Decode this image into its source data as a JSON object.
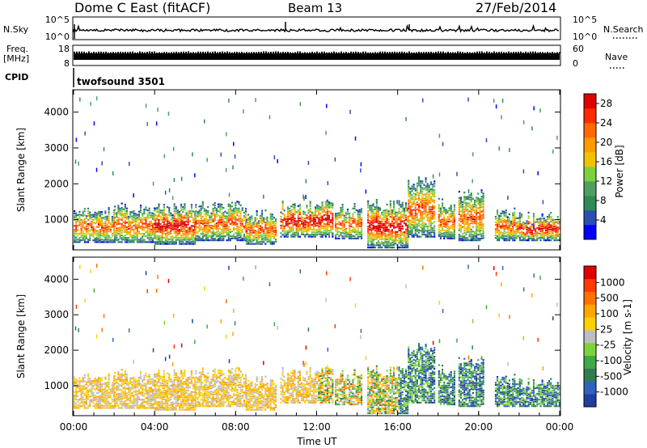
{
  "header": {
    "station": "Dome C East (fitACF)",
    "beam": "Beam 13",
    "date": "27/Feb/2014"
  },
  "panels": {
    "nsky": {
      "label": "N.Sky",
      "left_ticks": [
        "10^5",
        "10^0"
      ],
      "right_ticks": [
        "10^5",
        "10^0"
      ],
      "right_label": "N.Search"
    },
    "freq": {
      "label_line1": "Freq.",
      "label_line2": "[MHz]",
      "left_ticks": [
        "18",
        "8"
      ],
      "right_ticks": [
        "60",
        "0"
      ],
      "right_label": "Nave"
    },
    "cpid": {
      "label": "CPID",
      "program": "twofsound 3501"
    }
  },
  "colors": {
    "power": [
      "#0000ff",
      "#2a4fb0",
      "#2e8b57",
      "#4fa060",
      "#7cd23c",
      "#f2c200",
      "#ff9a00",
      "#ff6a00",
      "#ff2a00",
      "#e00000"
    ],
    "velocity": [
      "#1f3f9e",
      "#2f62c0",
      "#2e7d4f",
      "#3fa848",
      "#7ed33c",
      "#bebebe",
      "#ffd000",
      "#ffa500",
      "#ff7200",
      "#ff3a00",
      "#e00000"
    ]
  },
  "chart_data": [
    {
      "type": "heatmap",
      "name": "power",
      "ylabel": "Slant Range [km]",
      "yticks": [
        1000,
        2000,
        3000,
        4000
      ],
      "ylim": [
        180,
        4600
      ],
      "xlim": [
        0,
        24
      ],
      "colorbar": {
        "label": "Power [dB]",
        "ticks": [
          "4",
          "8",
          "12",
          "16",
          "20",
          "24",
          "28"
        ],
        "range": [
          0,
          30
        ]
      }
    },
    {
      "type": "heatmap",
      "name": "velocity",
      "ylabel": "Slant Range [km]",
      "yticks": [
        1000,
        2000,
        3000,
        4000
      ],
      "ylim": [
        180,
        4600
      ],
      "xlim": [
        0,
        24
      ],
      "colorbar": {
        "label": "Velocity [m s-1]",
        "ticks": [
          "1000",
          "500",
          "100",
          "25",
          "-25",
          "-100",
          "-500",
          "-1000"
        ]
      }
    }
  ],
  "xaxis": {
    "ticks": [
      "00:00",
      "04:00",
      "08:00",
      "12:00",
      "16:00",
      "20:00",
      "00:00"
    ],
    "label": "Time UT"
  }
}
